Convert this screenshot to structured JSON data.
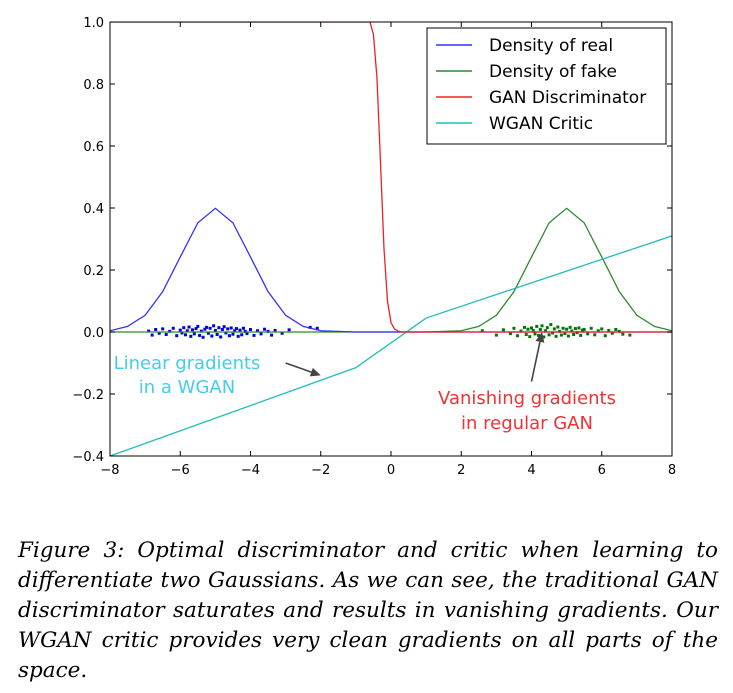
{
  "chart_data": {
    "type": "line",
    "xlim": [
      -8,
      8
    ],
    "ylim": [
      -0.4,
      1.0
    ],
    "xticks": [
      -8,
      -6,
      -4,
      -2,
      0,
      2,
      4,
      6,
      8
    ],
    "yticks": [
      -0.4,
      -0.2,
      0.0,
      0.2,
      0.4,
      0.6,
      0.8,
      1.0
    ],
    "xtick_labels": [
      "−8",
      "−6",
      "−4",
      "−2",
      "0",
      "2",
      "4",
      "6",
      "8"
    ],
    "ytick_labels": [
      "−0.4",
      "−0.2",
      "0.0",
      "0.2",
      "0.4",
      "0.6",
      "0.8",
      "1.0"
    ],
    "grid": false,
    "legend_position": "top-right",
    "series": [
      {
        "name": "Density of real",
        "color": "#3333ff",
        "x": [
          -8,
          -7.5,
          -7,
          -6.5,
          -6,
          -5.5,
          -5,
          -4.5,
          -4,
          -3.5,
          -3,
          -2.5,
          -2,
          -1,
          0,
          2,
          4,
          8
        ],
        "y": [
          0.004,
          0.018,
          0.054,
          0.13,
          0.242,
          0.352,
          0.399,
          0.352,
          0.242,
          0.13,
          0.054,
          0.018,
          0.004,
          0.0,
          0.0,
          0.0,
          0.0,
          0.0
        ]
      },
      {
        "name": "Density of fake",
        "color": "#2a8c2a",
        "x": [
          -8,
          -4,
          0,
          1,
          2,
          2.5,
          3,
          3.5,
          4,
          4.5,
          5,
          5.5,
          6,
          6.5,
          7,
          7.5,
          8
        ],
        "y": [
          0.0,
          0.0,
          0.0,
          0.0,
          0.004,
          0.018,
          0.054,
          0.13,
          0.242,
          0.352,
          0.399,
          0.352,
          0.242,
          0.13,
          0.054,
          0.018,
          0.004
        ]
      },
      {
        "name": "GAN Discriminator",
        "color": "#ee2222",
        "x": [
          -8,
          -0.6,
          -0.5,
          -0.4,
          -0.3,
          -0.2,
          -0.1,
          0.0,
          0.1,
          0.2,
          0.3,
          8
        ],
        "y": [
          1.0,
          1.0,
          0.96,
          0.82,
          0.55,
          0.27,
          0.1,
          0.03,
          0.01,
          0.003,
          0.0,
          0.0
        ]
      },
      {
        "name": "WGAN Critic",
        "color": "#22bbbb",
        "x": [
          -8,
          -1,
          1,
          8
        ],
        "y": [
          -0.4,
          -0.115,
          0.045,
          0.31
        ]
      }
    ],
    "scatter": [
      {
        "color": "#0000dd",
        "x": [
          -6.9,
          -6.8,
          -6.7,
          -6.6,
          -6.5,
          -6.4,
          -6.3,
          -6.2,
          -6.1,
          -6.0,
          -5.95,
          -5.9,
          -5.85,
          -5.8,
          -5.75,
          -5.7,
          -5.65,
          -5.6,
          -5.55,
          -5.5,
          -5.45,
          -5.4,
          -5.35,
          -5.3,
          -5.25,
          -5.2,
          -5.15,
          -5.1,
          -5.05,
          -5.0,
          -4.95,
          -4.9,
          -4.85,
          -4.8,
          -4.75,
          -4.7,
          -4.65,
          -4.6,
          -4.55,
          -4.5,
          -4.45,
          -4.4,
          -4.35,
          -4.3,
          -4.25,
          -4.2,
          -4.15,
          -4.1,
          -4.0,
          -3.9,
          -3.8,
          -3.7,
          -3.6,
          -3.5,
          -3.4,
          -3.3,
          -3.1,
          -2.9,
          -2.3,
          -2.1
        ],
        "y": [
          0.003,
          -0.01,
          0.008,
          -0.004,
          0.01,
          -0.008,
          0.002,
          0.012,
          -0.012,
          0.006,
          -0.003,
          0.014,
          -0.009,
          0.004,
          0.016,
          -0.014,
          0.007,
          -0.006,
          0.011,
          0.018,
          -0.011,
          0.003,
          -0.017,
          0.009,
          0.015,
          -0.004,
          0.012,
          -0.013,
          0.02,
          0.005,
          -0.008,
          0.014,
          -0.016,
          0.008,
          0.017,
          -0.003,
          0.01,
          -0.012,
          0.013,
          -0.007,
          0.004,
          0.011,
          -0.014,
          0.006,
          -0.009,
          0.012,
          0.002,
          -0.005,
          0.008,
          -0.011,
          0.004,
          -0.006,
          0.009,
          0.002,
          -0.01,
          0.005,
          -0.004,
          0.007,
          0.015,
          0.012
        ]
      },
      {
        "color": "#007700",
        "x": [
          2.6,
          3.0,
          3.2,
          3.4,
          3.5,
          3.6,
          3.7,
          3.8,
          3.85,
          3.9,
          3.95,
          4.0,
          4.05,
          4.1,
          4.15,
          4.2,
          4.25,
          4.3,
          4.35,
          4.4,
          4.45,
          4.5,
          4.55,
          4.6,
          4.65,
          4.7,
          4.75,
          4.8,
          4.85,
          4.9,
          4.95,
          5.0,
          5.05,
          5.1,
          5.15,
          5.2,
          5.25,
          5.3,
          5.35,
          5.4,
          5.45,
          5.5,
          5.6,
          5.7,
          5.8,
          5.9,
          6.0,
          6.1,
          6.2,
          6.3,
          6.4,
          6.5,
          6.6,
          6.8
        ],
        "y": [
          0.004,
          -0.01,
          0.007,
          -0.005,
          0.012,
          -0.012,
          0.003,
          0.015,
          -0.008,
          0.009,
          -0.015,
          0.013,
          0.005,
          -0.006,
          0.018,
          -0.011,
          0.008,
          0.02,
          -0.016,
          0.004,
          0.014,
          -0.009,
          0.024,
          -0.003,
          0.01,
          -0.014,
          0.016,
          0.002,
          -0.01,
          0.012,
          -0.005,
          0.009,
          -0.013,
          0.015,
          0.003,
          -0.008,
          0.011,
          -0.002,
          0.013,
          -0.011,
          0.006,
          0.008,
          -0.006,
          0.012,
          -0.009,
          0.004,
          0.01,
          -0.012,
          0.005,
          -0.004,
          0.008,
          0.002,
          -0.007,
          -0.01
        ]
      }
    ],
    "annotations": [
      {
        "text_lines": [
          "Linear gradients",
          "in a WGAN"
        ],
        "color": "#44ccee",
        "arrow_to": [
          -2.0,
          -0.14
        ],
        "arrow_from": [
          -3.0,
          -0.1
        ]
      },
      {
        "text_lines": [
          "Vanishing gradients",
          "in regular GAN"
        ],
        "color": "#ee3333",
        "arrow_to": [
          4.3,
          0.0
        ],
        "arrow_from": [
          4.0,
          -0.16
        ]
      }
    ]
  },
  "caption": "Figure 3: Optimal discriminator and critic when learning to differentiate two Gaussians.  As we can see, the traditional GAN discriminator saturates and results in vanishing gradients.  Our WGAN critic provides very clean gradients on all parts of the space."
}
